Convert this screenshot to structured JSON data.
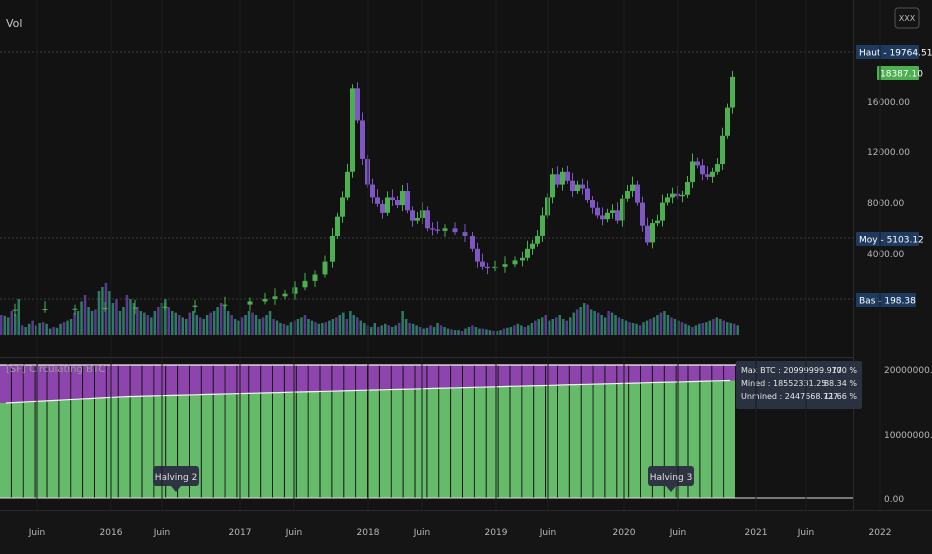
{
  "top_panel": {
    "label": "Vol",
    "button": "XXX",
    "price_ticks": [
      "16000.00",
      "12000.00",
      "8000.00",
      "4000.00"
    ],
    "tags": {
      "high": {
        "text": "Haut - 19764.51",
        "value": 19764.51,
        "color": "#1e3a5f"
      },
      "last": {
        "text": "18387.10",
        "value": 18387.1,
        "color": "#4caf50"
      },
      "mid": {
        "text": "Moy - 5103.12",
        "value": 5103.12,
        "color": "#1e3a5f"
      },
      "low": {
        "text": "Bas - 198.38",
        "value": 198.38,
        "color": "#1e3a5f"
      }
    }
  },
  "bottom_panel": {
    "title": "[SF] Circulating BTC",
    "value_ticks": [
      "20000000.00",
      "10000000.00",
      "0.00"
    ],
    "legend": [
      {
        "label": "Max BTC : 20999999.977",
        "pct": "100 %"
      },
      {
        "label": "Mined     : 18552331.25",
        "pct": "88.34 %"
      },
      {
        "label": "Unmined : 2447668.727",
        "pct": "11.66 %"
      }
    ],
    "halving_labels": [
      "Halving 2",
      "Halving 3"
    ]
  },
  "time_axis": [
    "Juin",
    "2016",
    "Juin",
    "2017",
    "Juin",
    "2018",
    "Juin",
    "2019",
    "Juin",
    "2020",
    "Juin",
    "2021",
    "Juin",
    "2022"
  ],
  "chart_data": {
    "type": "candlestick",
    "series": [
      {
        "name": "Vol",
        "values": [
          0.25,
          0.24,
          0.22,
          0.3,
          0.26,
          0.45,
          0.12,
          0.1,
          0.14,
          0.18,
          0.12,
          0.15,
          0.16,
          0.14,
          0.08,
          0.1,
          0.09,
          0.14,
          0.16,
          0.18,
          0.2,
          0.28,
          0.3,
          0.42,
          0.5,
          0.35,
          0.3,
          0.32,
          0.55,
          0.6,
          0.65,
          0.55,
          0.4,
          0.45,
          0.3,
          0.35,
          0.5,
          0.45,
          0.4,
          0.35,
          0.3,
          0.28,
          0.25,
          0.22,
          0.3,
          0.35,
          0.4,
          0.45,
          0.35,
          0.3,
          0.28,
          0.25,
          0.22,
          0.2,
          0.28,
          0.3,
          0.25,
          0.22,
          0.2,
          0.25,
          0.28,
          0.3,
          0.35,
          0.4,
          0.38,
          0.3,
          0.25,
          0.2,
          0.18,
          0.22,
          0.25,
          0.3,
          0.28,
          0.25,
          0.2,
          0.22,
          0.25,
          0.3,
          0.2,
          0.18,
          0.15,
          0.14,
          0.12,
          0.16,
          0.18,
          0.2,
          0.22,
          0.25,
          0.2,
          0.18,
          0.16,
          0.14,
          0.15,
          0.16,
          0.18,
          0.2,
          0.22,
          0.25,
          0.28,
          0.2,
          0.3,
          0.25,
          0.22,
          0.18,
          0.15,
          0.12,
          0.1,
          0.15,
          0.1,
          0.12,
          0.14,
          0.12,
          0.1,
          0.12,
          0.15,
          0.3,
          0.2,
          0.15,
          0.14,
          0.12,
          0.1,
          0.08,
          0.09,
          0.12,
          0.1,
          0.15,
          0.12,
          0.1,
          0.08,
          0.07,
          0.06,
          0.06,
          0.05,
          0.08,
          0.1,
          0.12,
          0.1,
          0.08,
          0.08,
          0.07,
          0.06,
          0.05,
          0.05,
          0.06,
          0.08,
          0.09,
          0.1,
          0.12,
          0.14,
          0.12,
          0.1,
          0.12,
          0.15,
          0.18,
          0.2,
          0.22,
          0.25,
          0.18,
          0.2,
          0.22,
          0.25,
          0.2,
          0.18,
          0.22,
          0.28,
          0.32,
          0.35,
          0.4,
          0.38,
          0.32,
          0.3,
          0.28,
          0.25,
          0.22,
          0.3,
          0.28,
          0.25,
          0.22,
          0.2,
          0.18,
          0.16,
          0.15,
          0.14,
          0.12,
          0.16,
          0.18,
          0.2,
          0.22,
          0.25,
          0.28,
          0.3,
          0.25,
          0.22,
          0.2,
          0.18,
          0.16,
          0.14,
          0.12,
          0.1,
          0.12,
          0.14,
          0.15,
          0.16,
          0.18,
          0.2,
          0.22,
          0.2,
          0.18,
          0.16,
          0.15,
          0.14,
          0.12
        ]
      },
      {
        "name": "Circulating BTC",
        "values": [
          15.0,
          15.1,
          15.2,
          15.3,
          15.4,
          15.5,
          15.6,
          15.7,
          15.8,
          15.9,
          16.0,
          16.05,
          16.1,
          16.15,
          16.2,
          16.25,
          16.3,
          16.35,
          16.4,
          16.45,
          16.5,
          16.55,
          16.6,
          16.65,
          16.7,
          16.75,
          16.8,
          16.85,
          16.9,
          16.95,
          17.0,
          17.05,
          17.1,
          17.15,
          17.2,
          17.25,
          17.3,
          17.35,
          17.4,
          17.45,
          17.5,
          17.55,
          17.6,
          17.65,
          17.7,
          17.75,
          17.8,
          17.85,
          17.9,
          17.95,
          18.0,
          18.05,
          18.1,
          18.15,
          18.2,
          18.25,
          18.3,
          18.35,
          18.4,
          18.45,
          18.5,
          18.55
        ]
      }
    ]
  }
}
